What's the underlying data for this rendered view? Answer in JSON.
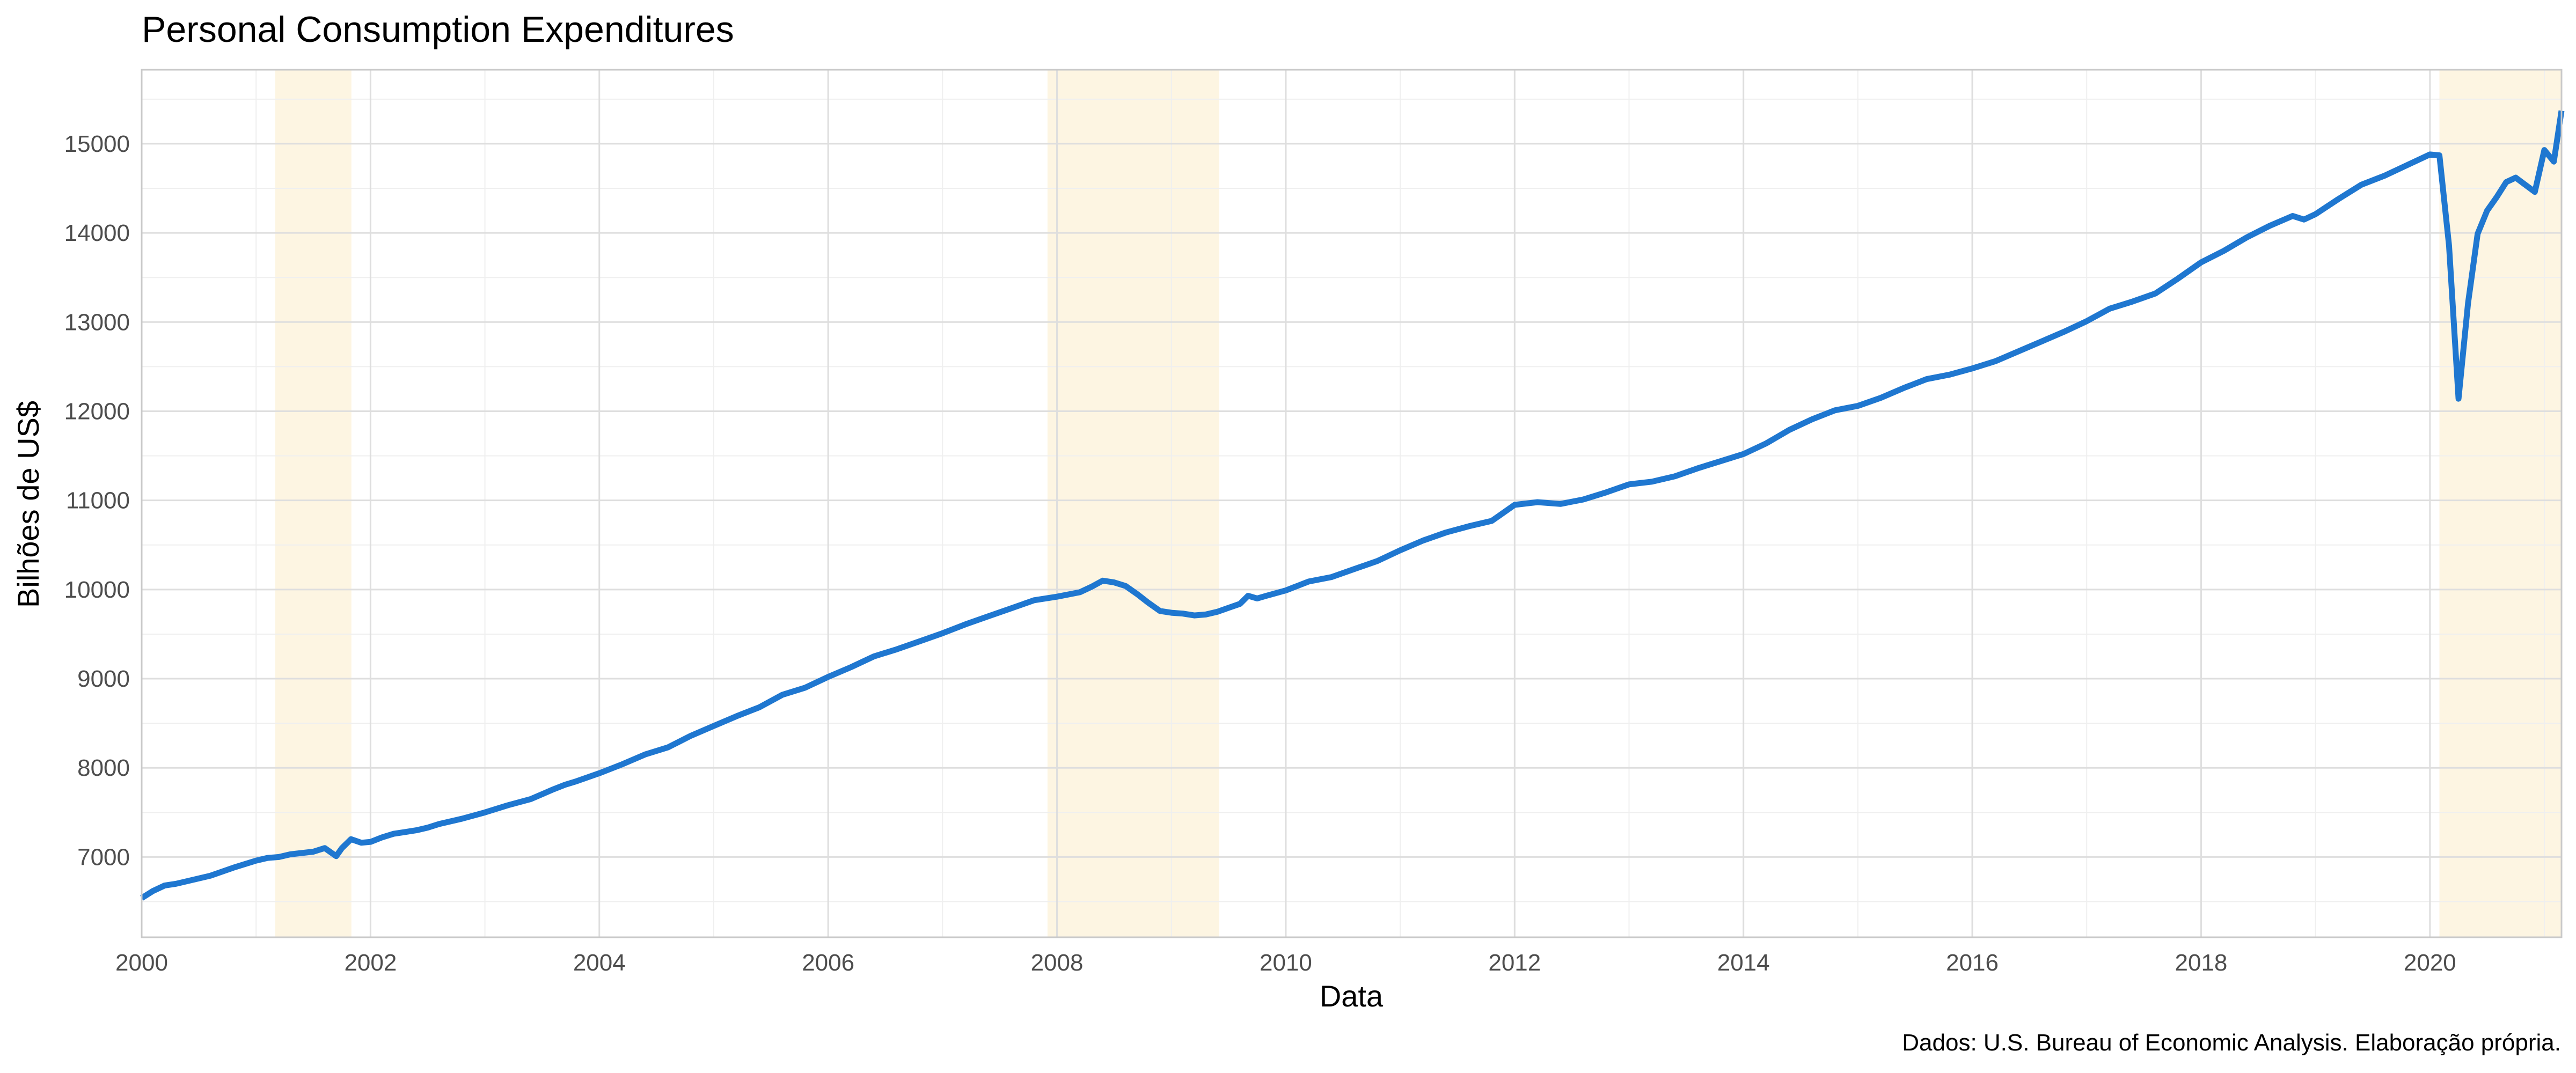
{
  "chart_data": {
    "type": "line",
    "title": "Personal Consumption Expenditures",
    "xlabel": "Data",
    "ylabel": "Bilhões de US$",
    "caption": "Dados: U.S. Bureau of Economic Analysis. Elaboração própria.",
    "xlim": [
      2000.0,
      2021.15
    ],
    "ylim": [
      6100,
      15830
    ],
    "x_ticks": [
      2000,
      2002,
      2004,
      2006,
      2008,
      2010,
      2012,
      2014,
      2016,
      2018,
      2020
    ],
    "x_tick_labels": [
      "2000",
      "2002",
      "2004",
      "2006",
      "2008",
      "2010",
      "2012",
      "2014",
      "2016",
      "2018",
      "2020"
    ],
    "y_ticks": [
      7000,
      8000,
      9000,
      10000,
      11000,
      12000,
      13000,
      14000,
      15000
    ],
    "y_tick_labels": [
      "7000",
      "8000",
      "9000",
      "10000",
      "11000",
      "12000",
      "13000",
      "14000",
      "15000"
    ],
    "grid": true,
    "line_color": "#1f77d0",
    "recession_color": "#fdf5e2",
    "recessions": [
      {
        "start": 2001.167,
        "end": 2001.833
      },
      {
        "start": 2007.917,
        "end": 2009.417
      },
      {
        "start": 2020.083,
        "end": 2021.15
      }
    ],
    "series": [
      {
        "x": [
          2000.0,
          2000.1,
          2000.2,
          2000.3,
          2000.4,
          2000.6,
          2000.8,
          2000.9,
          2001.0,
          2001.1,
          2001.2,
          2001.3,
          2001.5,
          2001.6,
          2001.7,
          2001.75,
          2001.83,
          2001.92,
          2002.0,
          2002.1,
          2002.2,
          2002.3,
          2002.4,
          2002.5,
          2002.6,
          2002.8,
          2003.0,
          2003.2,
          2003.4,
          2003.6,
          2003.7,
          2003.8,
          2004.0,
          2004.2,
          2004.4,
          2004.6,
          2004.8,
          2005.0,
          2005.2,
          2005.4,
          2005.6,
          2005.8,
          2006.0,
          2006.2,
          2006.4,
          2006.6,
          2006.8,
          2007.0,
          2007.2,
          2007.4,
          2007.6,
          2007.8,
          2008.0,
          2008.2,
          2008.3,
          2008.4,
          2008.5,
          2008.6,
          2008.7,
          2008.8,
          2008.9,
          2009.0,
          2009.1,
          2009.2,
          2009.3,
          2009.4,
          2009.6,
          2009.67,
          2009.75,
          2009.83,
          2010.0,
          2010.2,
          2010.4,
          2010.6,
          2010.8,
          2011.0,
          2011.2,
          2011.4,
          2011.6,
          2011.8,
          2012.0,
          2012.2,
          2012.4,
          2012.6,
          2012.8,
          2013.0,
          2013.2,
          2013.4,
          2013.6,
          2013.8,
          2014.0,
          2014.2,
          2014.4,
          2014.6,
          2014.8,
          2015.0,
          2015.2,
          2015.4,
          2015.6,
          2015.8,
          2016.0,
          2016.2,
          2016.4,
          2016.6,
          2016.8,
          2017.0,
          2017.2,
          2017.4,
          2017.6,
          2017.8,
          2018.0,
          2018.2,
          2018.4,
          2018.6,
          2018.8,
          2018.9,
          2019.0,
          2019.2,
          2019.4,
          2019.6,
          2019.8,
          2020.0,
          2020.083,
          2020.167,
          2020.25,
          2020.333,
          2020.417,
          2020.5,
          2020.583,
          2020.667,
          2020.75,
          2020.833,
          2020.917,
          2021.0,
          2021.083,
          2021.15
        ],
        "values": [
          6540,
          6620,
          6680,
          6700,
          6730,
          6790,
          6880,
          6920,
          6960,
          6990,
          7000,
          7030,
          7060,
          7100,
          7010,
          7100,
          7200,
          7160,
          7170,
          7220,
          7260,
          7280,
          7300,
          7330,
          7370,
          7430,
          7500,
          7580,
          7650,
          7760,
          7810,
          7850,
          7940,
          8040,
          8150,
          8230,
          8360,
          8470,
          8580,
          8680,
          8820,
          8900,
          9020,
          9130,
          9250,
          9330,
          9420,
          9510,
          9610,
          9700,
          9790,
          9880,
          9920,
          9970,
          10030,
          10100,
          10080,
          10040,
          9950,
          9850,
          9760,
          9740,
          9730,
          9710,
          9720,
          9750,
          9840,
          9930,
          9900,
          9930,
          9990,
          10090,
          10140,
          10230,
          10320,
          10440,
          10550,
          10640,
          10710,
          10770,
          10950,
          10980,
          10960,
          11010,
          11090,
          11180,
          11210,
          11270,
          11360,
          11440,
          11520,
          11640,
          11790,
          11910,
          12010,
          12060,
          12150,
          12260,
          12360,
          12410,
          12480,
          12560,
          12670,
          12780,
          12890,
          13010,
          13150,
          13230,
          13320,
          13490,
          13670,
          13800,
          13950,
          14080,
          14190,
          14150,
          14210,
          14380,
          14540,
          14640,
          14760,
          14880,
          14870,
          13860,
          12140,
          13210,
          13990,
          14250,
          14400,
          14570,
          14620,
          14540,
          14460,
          14930,
          14800,
          15370
        ]
      }
    ]
  }
}
